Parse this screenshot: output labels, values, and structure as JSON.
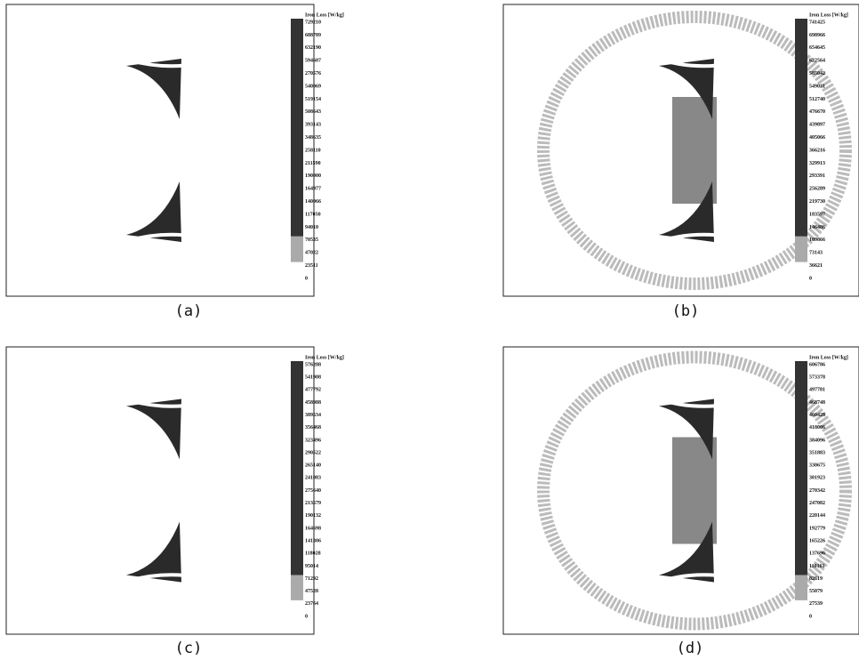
{
  "panels": [
    {
      "caption": "(a)",
      "legend_title": "Iron Loss [W/kg]",
      "legend_labels": [
        "729210",
        "688789",
        "632190",
        "594607",
        "270576",
        "540069",
        "519154",
        "508643",
        "393143",
        "348635",
        "258110",
        "211590",
        "190000",
        "164977",
        "140066",
        "117050",
        "94010",
        "70535",
        "47022",
        "23511",
        "0"
      ]
    },
    {
      "caption": "(b)",
      "legend_title": "Iron Loss [W/kg]",
      "legend_labels": [
        "741425",
        "698966",
        "654645",
        "622564",
        "585042",
        "549031",
        "512740",
        "476670",
        "439897",
        "405066",
        "366216",
        "329913",
        "293391",
        "256289",
        "219730",
        "183597",
        "146486",
        "109866",
        "73143",
        "36621",
        "0"
      ]
    },
    {
      "caption": "(c)",
      "legend_title": "Iron Loss [W/kg]",
      "legend_labels": [
        "576288",
        "541908",
        "477792",
        "458988",
        "389534",
        "356468",
        "323496",
        "290522",
        "265140",
        "241083",
        "275640",
        "213579",
        "190132",
        "164698",
        "141306",
        "118028",
        "95014",
        "71292",
        "47528",
        "23764",
        "0"
      ]
    },
    {
      "caption": "(d)",
      "legend_title": "Iron Loss [W/kg]",
      "legend_labels": [
        "606786",
        "573378",
        "497781",
        "468748",
        "460428",
        "418006",
        "384096",
        "351883",
        "330675",
        "301923",
        "270342",
        "247082",
        "220144",
        "192779",
        "165226",
        "137696",
        "110161",
        "82619",
        "55079",
        "27539",
        "0"
      ]
    }
  ]
}
